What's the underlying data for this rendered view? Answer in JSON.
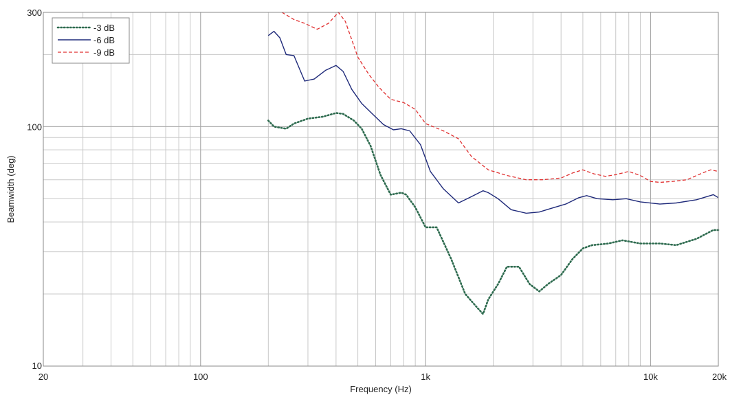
{
  "chart_data": {
    "type": "line",
    "title": "",
    "xlabel": "Frequency (Hz)",
    "ylabel": "Beamwidth (deg)",
    "x_scale": "log",
    "y_scale": "log",
    "xlim": [
      20,
      20000
    ],
    "ylim": [
      10,
      300
    ],
    "grid": true,
    "legend_position": "top-left",
    "x_ticks": [
      {
        "value": 20,
        "label": "20"
      },
      {
        "value": 100,
        "label": "100"
      },
      {
        "value": 1000,
        "label": "1k"
      },
      {
        "value": 10000,
        "label": "10k"
      },
      {
        "value": 20000,
        "label": "20k"
      }
    ],
    "y_ticks": [
      {
        "value": 10,
        "label": "10"
      },
      {
        "value": 100,
        "label": "100"
      },
      {
        "value": 300,
        "label": "300"
      }
    ],
    "series": [
      {
        "name": "-3 dB",
        "color": "#2e6b4f",
        "style": "dotted",
        "x": [
          200,
          212,
          240,
          260,
          300,
          350,
          400,
          430,
          480,
          520,
          570,
          630,
          700,
          780,
          820,
          900,
          1000,
          1120,
          1300,
          1500,
          1700,
          1800,
          1900,
          2100,
          2300,
          2600,
          2900,
          3200,
          3500,
          4000,
          4500,
          5000,
          5500,
          6500,
          7500,
          9000,
          11000,
          13000,
          16000,
          19000,
          20000
        ],
        "y": [
          106,
          100,
          98,
          103,
          108,
          110,
          114,
          113,
          106,
          98,
          83,
          63,
          52,
          53,
          52,
          46,
          38,
          38,
          28,
          20,
          17.5,
          16.5,
          19,
          22,
          26,
          26,
          22,
          20.5,
          22,
          24,
          28,
          31,
          32,
          32.5,
          33.5,
          32.5,
          32.5,
          32,
          34,
          37,
          37
        ]
      },
      {
        "name": "-6 dB",
        "color": "#1f2a7a",
        "style": "solid",
        "x": [
          200,
          212,
          225,
          240,
          260,
          290,
          320,
          360,
          400,
          430,
          470,
          520,
          580,
          650,
          720,
          780,
          850,
          950,
          1050,
          1200,
          1400,
          1600,
          1800,
          1900,
          2100,
          2400,
          2800,
          3200,
          3600,
          4200,
          4800,
          5200,
          5800,
          6800,
          7800,
          9000,
          11000,
          13000,
          16000,
          19000,
          20000
        ],
        "y": [
          240,
          250,
          235,
          200,
          198,
          155,
          158,
          172,
          180,
          170,
          143,
          125,
          113,
          102,
          97,
          98,
          96,
          84,
          65,
          55,
          48,
          51,
          54,
          53,
          50,
          45,
          43.5,
          44,
          45.5,
          47.5,
          50.5,
          51.5,
          50,
          49.5,
          50,
          48.5,
          47.5,
          48,
          49.5,
          52,
          50.5
        ]
      },
      {
        "name": "-9 dB",
        "color": "#e03030",
        "style": "dashed",
        "x": [
          230,
          260,
          290,
          330,
          370,
          410,
          440,
          500,
          560,
          620,
          700,
          800,
          900,
          1000,
          1200,
          1400,
          1600,
          1900,
          2300,
          2800,
          3300,
          4000,
          4500,
          5000,
          5600,
          6300,
          7000,
          8000,
          9000,
          10000,
          11000,
          12500,
          14500,
          17000,
          18500,
          20000
        ],
        "y": [
          300,
          280,
          270,
          255,
          270,
          300,
          275,
          195,
          165,
          146,
          130,
          126,
          118,
          103,
          96,
          89,
          75,
          66,
          62.5,
          60,
          60,
          61,
          64,
          66,
          63.5,
          62,
          63,
          65,
          62.5,
          59,
          58.5,
          59,
          60,
          64,
          66,
          65
        ]
      }
    ]
  }
}
